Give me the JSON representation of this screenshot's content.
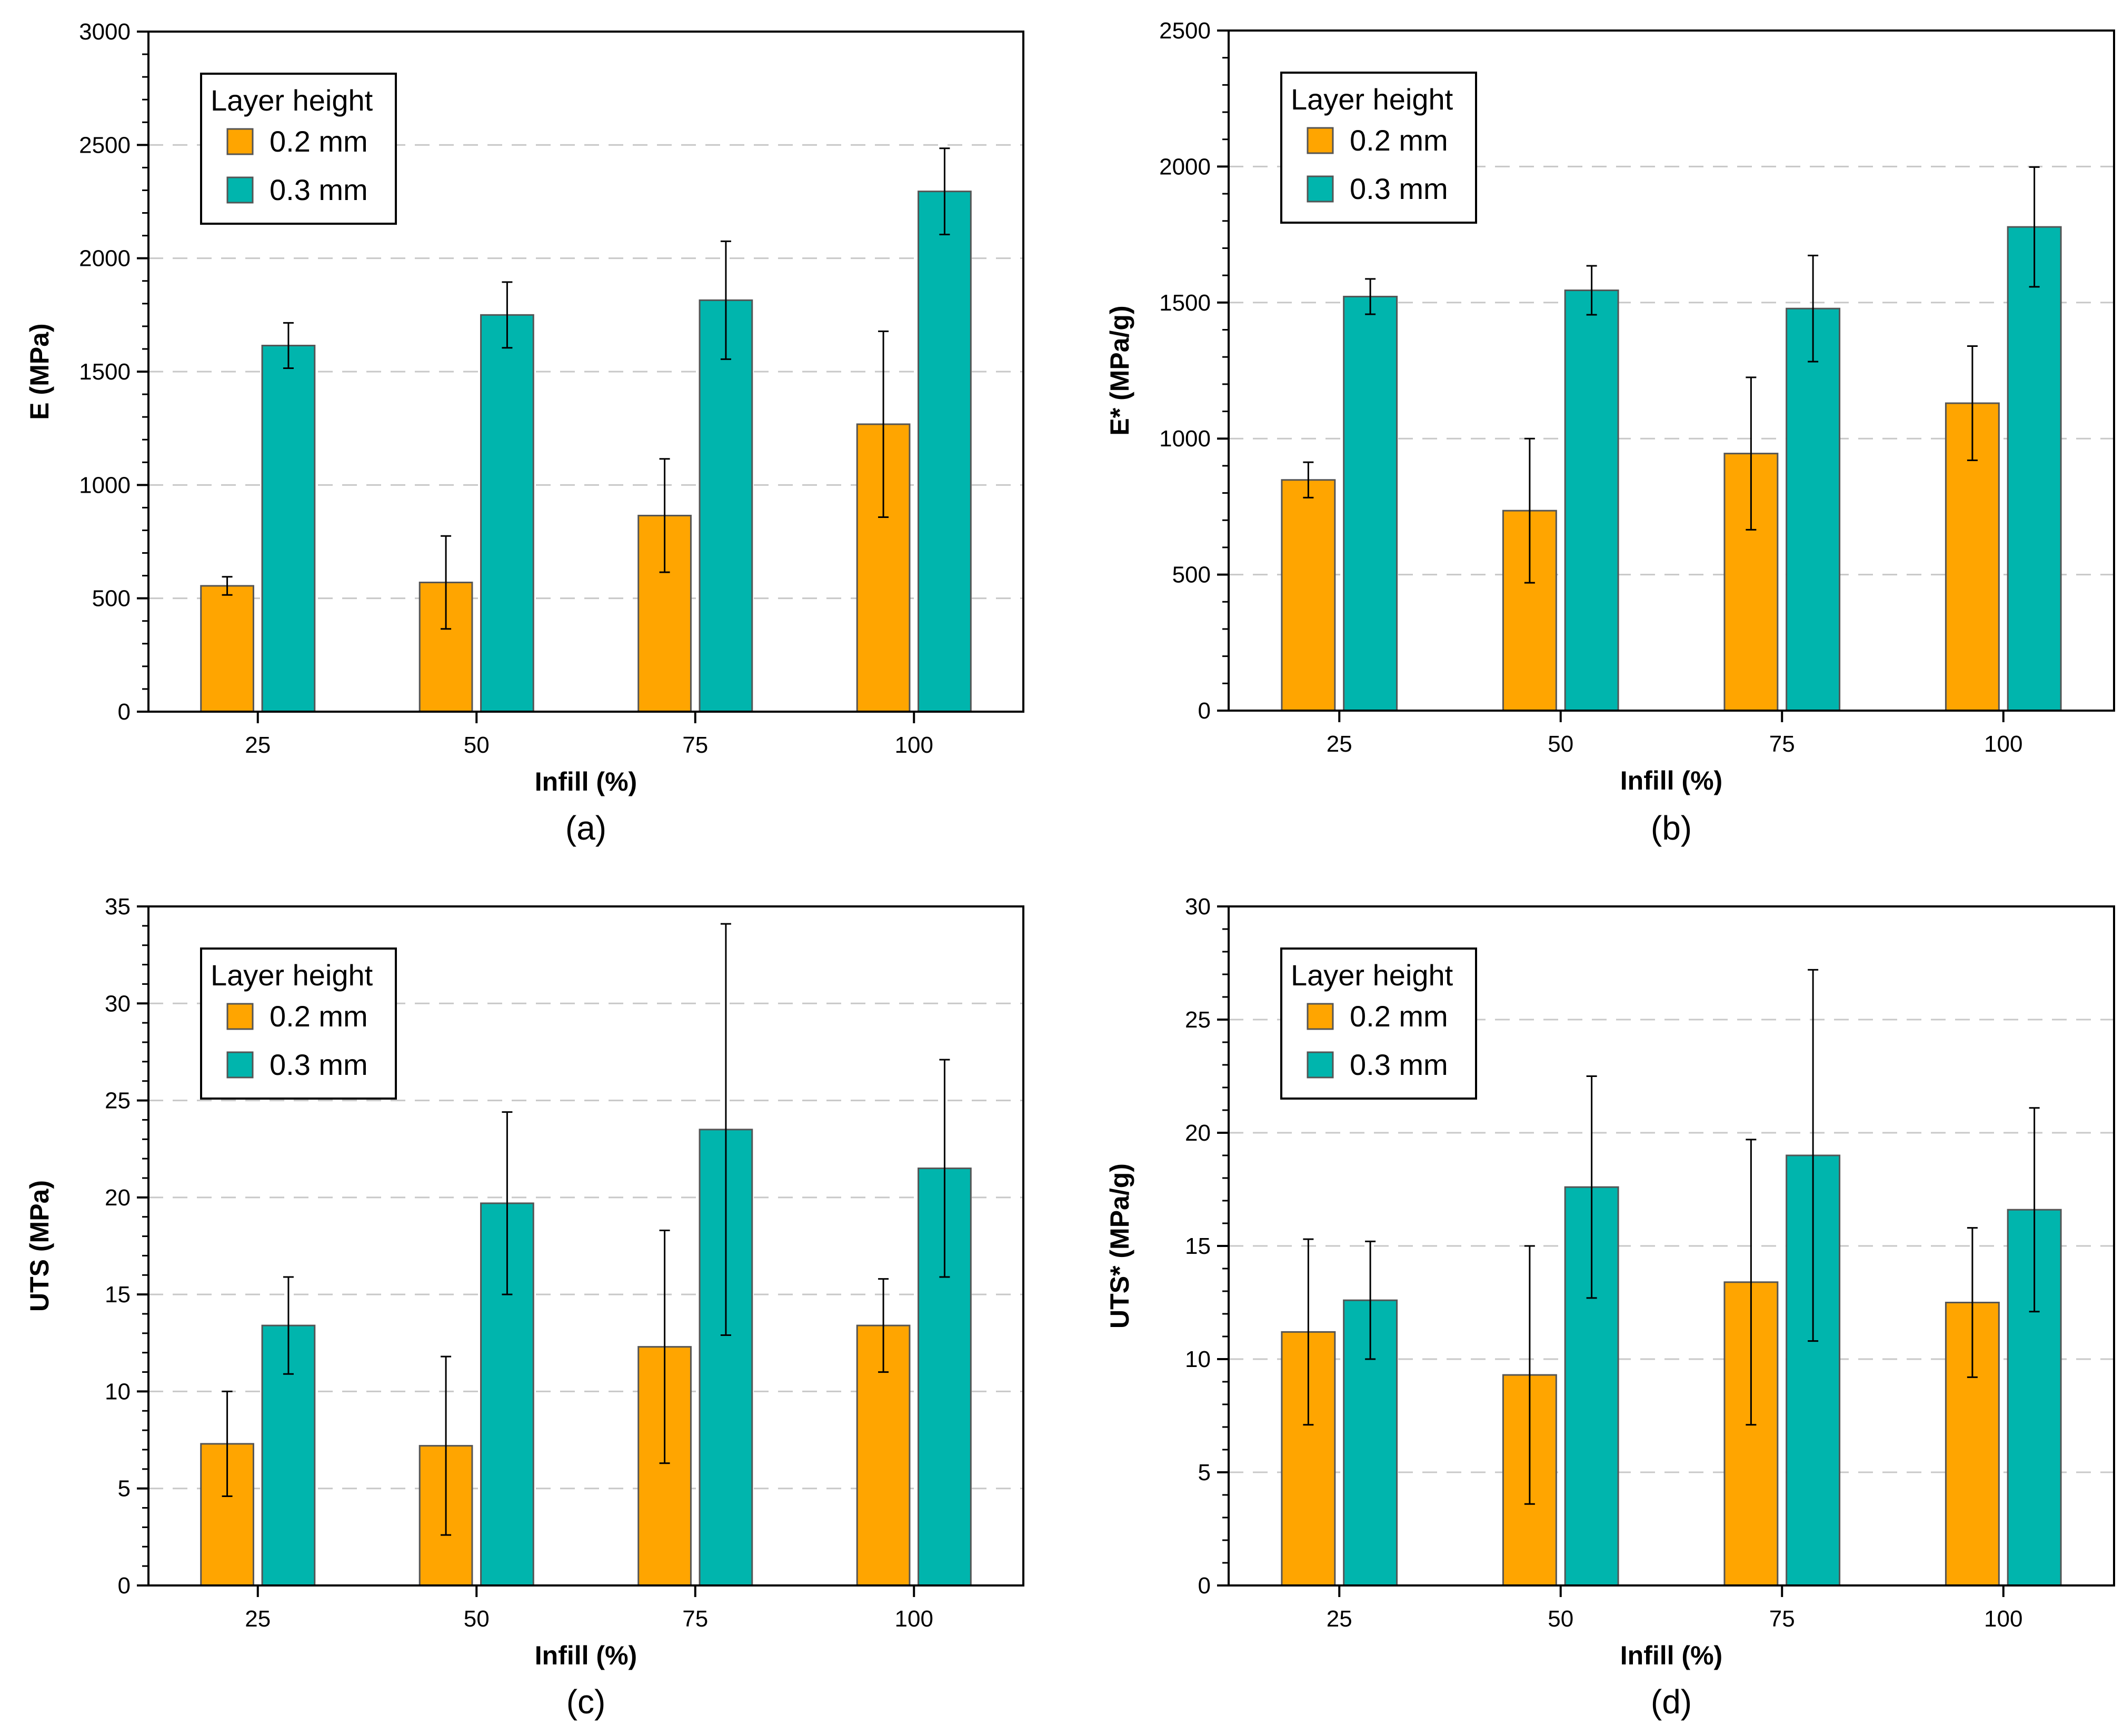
{
  "figure": {
    "colors": {
      "series_0": "#FFA500",
      "series_1": "#00B5AD",
      "grid": "#C8C8C8",
      "error_bar": "#000000",
      "bar_edge": "#555555"
    }
  },
  "chart_data": [
    {
      "id": "a",
      "type": "bar",
      "caption": "(a)",
      "xlabel": "Infill (%)",
      "ylabel": "E (MPa)",
      "categories": [
        "25",
        "50",
        "75",
        "100"
      ],
      "ylim": [
        0,
        3000
      ],
      "yticks": [
        0,
        500,
        1000,
        1500,
        2000,
        2500,
        3000
      ],
      "grid": true,
      "legend": {
        "title": "Layer height",
        "position": "top-left"
      },
      "series": [
        {
          "name": "0.2 mm",
          "values": [
            555,
            570,
            865,
            1268
          ],
          "errors": [
            40,
            205,
            250,
            410
          ]
        },
        {
          "name": "0.3 mm",
          "values": [
            1615,
            1750,
            1815,
            2295
          ],
          "errors": [
            100,
            145,
            260,
            190
          ]
        }
      ]
    },
    {
      "id": "b",
      "type": "bar",
      "caption": "(b)",
      "xlabel": "Infill (%)",
      "ylabel": "E* (MPa/g)",
      "categories": [
        "25",
        "50",
        "75",
        "100"
      ],
      "ylim": [
        0,
        2500
      ],
      "yticks": [
        0,
        500,
        1000,
        1500,
        2000,
        2500
      ],
      "grid": true,
      "legend": {
        "title": "Layer height",
        "position": "top-left"
      },
      "series": [
        {
          "name": "0.2 mm",
          "values": [
            848,
            735,
            945,
            1130
          ],
          "errors": [
            65,
            265,
            280,
            210
          ]
        },
        {
          "name": "0.3 mm",
          "values": [
            1522,
            1545,
            1478,
            1778
          ],
          "errors": [
            65,
            90,
            195,
            220
          ]
        }
      ]
    },
    {
      "id": "c",
      "type": "bar",
      "caption": "(c)",
      "xlabel": "Infill (%)",
      "ylabel": "UTS (MPa)",
      "categories": [
        "25",
        "50",
        "75",
        "100"
      ],
      "ylim": [
        0,
        35
      ],
      "yticks": [
        0,
        5,
        10,
        15,
        20,
        25,
        30,
        35
      ],
      "grid": true,
      "legend": {
        "title": "Layer height",
        "position": "top-left"
      },
      "series": [
        {
          "name": "0.2 mm",
          "values": [
            7.3,
            7.2,
            12.3,
            13.4
          ],
          "errors": [
            2.7,
            4.6,
            6.0,
            2.4
          ]
        },
        {
          "name": "0.3 mm",
          "values": [
            13.4,
            19.7,
            23.5,
            21.5
          ],
          "errors": [
            2.5,
            4.7,
            10.6,
            5.6
          ]
        }
      ]
    },
    {
      "id": "d",
      "type": "bar",
      "caption": "(d)",
      "xlabel": "Infill (%)",
      "ylabel": "UTS* (MPa/g)",
      "categories": [
        "25",
        "50",
        "75",
        "100"
      ],
      "ylim": [
        0,
        30
      ],
      "yticks": [
        0,
        5,
        10,
        15,
        20,
        25,
        30
      ],
      "grid": true,
      "legend": {
        "title": "Layer height",
        "position": "top-left"
      },
      "series": [
        {
          "name": "0.2 mm",
          "values": [
            11.2,
            9.3,
            13.4,
            12.5
          ],
          "errors": [
            4.1,
            5.7,
            6.3,
            3.3
          ]
        },
        {
          "name": "0.3 mm",
          "values": [
            12.6,
            17.6,
            19.0,
            16.6
          ],
          "errors": [
            2.6,
            4.9,
            8.2,
            4.5
          ]
        }
      ]
    }
  ]
}
